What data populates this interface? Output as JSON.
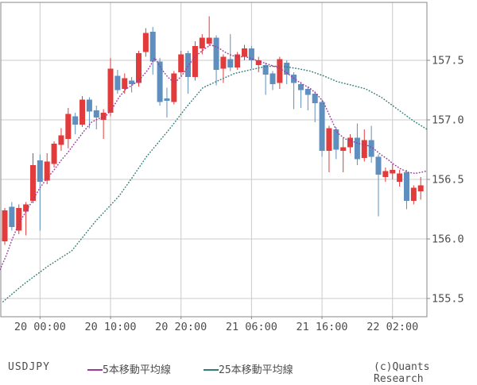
{
  "footer": {
    "symbol": "USDJPY",
    "ma5_label": "5本移動平均線",
    "ma25_label": "25本移動平均線",
    "copyright": "(c)Quants Research"
  },
  "colors": {
    "up": "#e23b3b",
    "down": "#5e8fbf",
    "ma5": "#9d3a9d",
    "ma25": "#2f7d75",
    "grid": "#cbcbcb",
    "axis": "#878787",
    "text": "#4d4d4d"
  },
  "chart_data": {
    "type": "candlestick",
    "symbol": "USDJPY",
    "timeframe": "1 hour",
    "grid": true,
    "legend_position": "bottom",
    "ylim": [
      155.35,
      157.99
    ],
    "y_ticks": [
      157.5,
      157.0,
      156.5,
      156.0,
      155.5
    ],
    "y_tick_labels": [
      "157.5",
      "157.0",
      "156.5",
      "156.0",
      "155.5"
    ],
    "x_ticks": [
      {
        "index": 5,
        "label": "20 00:00"
      },
      {
        "index": 15,
        "label": "20 10:00"
      },
      {
        "index": 25,
        "label": "20 20:00"
      },
      {
        "index": 35,
        "label": "21 06:00"
      },
      {
        "index": 45,
        "label": "21 16:00"
      },
      {
        "index": 55,
        "label": "22 02:00"
      }
    ],
    "candles": [
      {
        "t": "19 19:00",
        "o": 155.98,
        "h": 156.26,
        "l": 155.95,
        "c": 156.24
      },
      {
        "t": "19 20:00",
        "o": 156.27,
        "h": 156.31,
        "l": 156.07,
        "c": 156.1
      },
      {
        "t": "19 21:00",
        "o": 156.07,
        "h": 156.29,
        "l": 156.04,
        "c": 156.26
      },
      {
        "t": "19 22:00",
        "o": 156.23,
        "h": 156.31,
        "l": 156.03,
        "c": 156.29
      },
      {
        "t": "19 23:00",
        "o": 156.32,
        "h": 156.72,
        "l": 156.3,
        "c": 156.62
      },
      {
        "t": "20 00:00",
        "o": 156.66,
        "h": 156.71,
        "l": 156.07,
        "c": 156.48
      },
      {
        "t": "20 01:00",
        "o": 156.49,
        "h": 156.72,
        "l": 156.46,
        "c": 156.65
      },
      {
        "t": "20 02:00",
        "o": 156.63,
        "h": 156.82,
        "l": 156.6,
        "c": 156.8
      },
      {
        "t": "20 03:00",
        "o": 156.79,
        "h": 156.93,
        "l": 156.74,
        "c": 156.87
      },
      {
        "t": "20 04:00",
        "o": 156.84,
        "h": 157.1,
        "l": 156.76,
        "c": 157.05
      },
      {
        "t": "20 05:00",
        "o": 157.03,
        "h": 157.06,
        "l": 156.88,
        "c": 156.96
      },
      {
        "t": "20 06:00",
        "o": 156.96,
        "h": 157.2,
        "l": 156.94,
        "c": 157.17
      },
      {
        "t": "20 07:00",
        "o": 157.17,
        "h": 157.19,
        "l": 156.93,
        "c": 157.07
      },
      {
        "t": "20 08:00",
        "o": 157.08,
        "h": 157.12,
        "l": 156.92,
        "c": 157.02
      },
      {
        "t": "20 09:00",
        "o": 157.0,
        "h": 157.09,
        "l": 156.84,
        "c": 157.06
      },
      {
        "t": "20 10:00",
        "o": 157.06,
        "h": 157.52,
        "l": 157.03,
        "c": 157.43
      },
      {
        "t": "20 11:00",
        "o": 157.37,
        "h": 157.42,
        "l": 157.22,
        "c": 157.25
      },
      {
        "t": "20 12:00",
        "o": 157.26,
        "h": 157.39,
        "l": 157.22,
        "c": 157.35
      },
      {
        "t": "20 13:00",
        "o": 157.33,
        "h": 157.36,
        "l": 157.23,
        "c": 157.3
      },
      {
        "t": "20 14:00",
        "o": 157.31,
        "h": 157.58,
        "l": 157.28,
        "c": 157.56
      },
      {
        "t": "20 15:00",
        "o": 157.57,
        "h": 157.77,
        "l": 157.53,
        "c": 157.73
      },
      {
        "t": "20 16:00",
        "o": 157.74,
        "h": 157.78,
        "l": 157.38,
        "c": 157.49
      },
      {
        "t": "20 17:00",
        "o": 157.49,
        "h": 157.52,
        "l": 157.12,
        "c": 157.15
      },
      {
        "t": "20 18:00",
        "o": 157.18,
        "h": 157.27,
        "l": 157.02,
        "c": 157.16
      },
      {
        "t": "20 19:00",
        "o": 157.15,
        "h": 157.41,
        "l": 157.13,
        "c": 157.39
      },
      {
        "t": "20 20:00",
        "o": 157.4,
        "h": 157.58,
        "l": 157.37,
        "c": 157.55
      },
      {
        "t": "20 21:00",
        "o": 157.56,
        "h": 157.58,
        "l": 157.22,
        "c": 157.36
      },
      {
        "t": "20 22:00",
        "o": 157.36,
        "h": 157.66,
        "l": 157.33,
        "c": 157.62
      },
      {
        "t": "20 23:00",
        "o": 157.6,
        "h": 157.72,
        "l": 157.55,
        "c": 157.69
      },
      {
        "t": "21 00:00",
        "o": 157.64,
        "h": 157.87,
        "l": 157.62,
        "c": 157.69
      },
      {
        "t": "21 01:00",
        "o": 157.69,
        "h": 157.71,
        "l": 157.29,
        "c": 157.42
      },
      {
        "t": "21 02:00",
        "o": 157.43,
        "h": 157.55,
        "l": 157.31,
        "c": 157.53
      },
      {
        "t": "21 03:00",
        "o": 157.51,
        "h": 157.72,
        "l": 157.41,
        "c": 157.44
      },
      {
        "t": "21 04:00",
        "o": 157.44,
        "h": 157.57,
        "l": 157.42,
        "c": 157.55
      },
      {
        "t": "21 05:00",
        "o": 157.53,
        "h": 157.63,
        "l": 157.5,
        "c": 157.6
      },
      {
        "t": "21 06:00",
        "o": 157.6,
        "h": 157.62,
        "l": 157.43,
        "c": 157.5
      },
      {
        "t": "21 07:00",
        "o": 157.46,
        "h": 157.53,
        "l": 157.4,
        "c": 157.5
      },
      {
        "t": "21 08:00",
        "o": 157.46,
        "h": 157.48,
        "l": 157.21,
        "c": 157.38
      },
      {
        "t": "21 09:00",
        "o": 157.39,
        "h": 157.41,
        "l": 157.25,
        "c": 157.3
      },
      {
        "t": "21 10:00",
        "o": 157.31,
        "h": 157.53,
        "l": 157.26,
        "c": 157.51
      },
      {
        "t": "21 11:00",
        "o": 157.48,
        "h": 157.5,
        "l": 157.3,
        "c": 157.38
      },
      {
        "t": "21 12:00",
        "o": 157.38,
        "h": 157.4,
        "l": 157.09,
        "c": 157.31
      },
      {
        "t": "21 13:00",
        "o": 157.3,
        "h": 157.32,
        "l": 157.1,
        "c": 157.25
      },
      {
        "t": "21 14:00",
        "o": 157.26,
        "h": 157.28,
        "l": 157.08,
        "c": 157.21
      },
      {
        "t": "21 15:00",
        "o": 157.22,
        "h": 157.24,
        "l": 156.98,
        "c": 157.14
      },
      {
        "t": "21 16:00",
        "o": 157.15,
        "h": 157.17,
        "l": 156.69,
        "c": 156.74
      },
      {
        "t": "21 17:00",
        "o": 156.74,
        "h": 156.95,
        "l": 156.56,
        "c": 156.93
      },
      {
        "t": "21 18:00",
        "o": 156.92,
        "h": 156.94,
        "l": 156.67,
        "c": 156.75
      },
      {
        "t": "21 19:00",
        "o": 156.74,
        "h": 156.85,
        "l": 156.56,
        "c": 156.77
      },
      {
        "t": "21 20:00",
        "o": 156.77,
        "h": 156.88,
        "l": 156.72,
        "c": 156.85
      },
      {
        "t": "21 21:00",
        "o": 156.85,
        "h": 156.97,
        "l": 156.62,
        "c": 156.67
      },
      {
        "t": "21 22:00",
        "o": 156.68,
        "h": 156.92,
        "l": 156.65,
        "c": 156.83
      },
      {
        "t": "21 23:00",
        "o": 156.83,
        "h": 156.95,
        "l": 156.64,
        "c": 156.69
      },
      {
        "t": "22 00:00",
        "o": 156.69,
        "h": 156.71,
        "l": 156.19,
        "c": 156.54
      },
      {
        "t": "22 01:00",
        "o": 156.52,
        "h": 156.6,
        "l": 156.48,
        "c": 156.57
      },
      {
        "t": "22 02:00",
        "o": 156.55,
        "h": 156.63,
        "l": 156.5,
        "c": 156.58
      },
      {
        "t": "22 03:00",
        "o": 156.48,
        "h": 156.58,
        "l": 156.44,
        "c": 156.55
      },
      {
        "t": "22 04:00",
        "o": 156.56,
        "h": 156.58,
        "l": 156.25,
        "c": 156.32
      },
      {
        "t": "22 05:00",
        "o": 156.32,
        "h": 156.45,
        "l": 156.29,
        "c": 156.43
      },
      {
        "t": "22 06:00",
        "o": 156.4,
        "h": 156.52,
        "l": 156.33,
        "c": 156.45
      }
    ],
    "series": [
      {
        "name": "5本移動平均線",
        "points": [
          [
            -0.7,
            155.74
          ],
          [
            0.2,
            155.86
          ],
          [
            1.0,
            155.99
          ],
          [
            2.0,
            156.13
          ],
          [
            3.0,
            156.23
          ],
          [
            4.0,
            156.33
          ],
          [
            5.0,
            156.43
          ],
          [
            6.0,
            156.51
          ],
          [
            7.0,
            156.58
          ],
          [
            8.0,
            156.66
          ],
          [
            9.0,
            156.73
          ],
          [
            10.0,
            156.81
          ],
          [
            11.3,
            156.91
          ],
          [
            12.3,
            156.98
          ],
          [
            13.3,
            157.01
          ],
          [
            14.3,
            157.03
          ],
          [
            15.2,
            157.09
          ],
          [
            16.2,
            157.19
          ],
          [
            17.2,
            157.26
          ],
          [
            18.3,
            157.3
          ],
          [
            19.3,
            157.35
          ],
          [
            20.3,
            157.42
          ],
          [
            21.3,
            157.52
          ],
          [
            22.2,
            157.43
          ],
          [
            23.1,
            157.36
          ],
          [
            24.1,
            157.31
          ],
          [
            25.1,
            157.37
          ],
          [
            26.2,
            157.47
          ],
          [
            27.2,
            157.54
          ],
          [
            28.2,
            157.59
          ],
          [
            29.2,
            157.63
          ],
          [
            30.2,
            157.61
          ],
          [
            31.2,
            157.57
          ],
          [
            32.2,
            157.54
          ],
          [
            33.2,
            157.53
          ],
          [
            34.2,
            157.53
          ],
          [
            35.2,
            157.51
          ],
          [
            36.2,
            157.49
          ],
          [
            37.2,
            157.47
          ],
          [
            38.2,
            157.45
          ],
          [
            39.1,
            157.43
          ],
          [
            40.1,
            157.39
          ],
          [
            41.2,
            157.34
          ],
          [
            42.2,
            157.3
          ],
          [
            43.2,
            157.27
          ],
          [
            44.2,
            157.22
          ],
          [
            45.2,
            157.15
          ],
          [
            46.2,
            157.02
          ],
          [
            47.2,
            156.89
          ],
          [
            48.3,
            156.84
          ],
          [
            49.3,
            156.82
          ],
          [
            50.3,
            156.8
          ],
          [
            51.3,
            156.79
          ],
          [
            52.3,
            156.76
          ],
          [
            53.3,
            156.71
          ],
          [
            54.3,
            156.67
          ],
          [
            55.1,
            156.63
          ],
          [
            56.1,
            156.59
          ],
          [
            57.2,
            156.56
          ],
          [
            58.2,
            156.55
          ],
          [
            59.1,
            156.56
          ],
          [
            59.8,
            156.57
          ]
        ]
      },
      {
        "name": "25本移動平均線",
        "points": [
          [
            -0.3,
            155.47
          ],
          [
            2.7,
            155.62
          ],
          [
            6.1,
            155.77
          ],
          [
            9.5,
            155.9
          ],
          [
            12.9,
            156.15
          ],
          [
            16.2,
            156.36
          ],
          [
            17.9,
            156.5
          ],
          [
            20.1,
            156.69
          ],
          [
            23.6,
            156.94
          ],
          [
            25.8,
            157.11
          ],
          [
            28.1,
            157.27
          ],
          [
            30.3,
            157.33
          ],
          [
            32.6,
            157.39
          ],
          [
            34.8,
            157.42
          ],
          [
            37.1,
            157.45
          ],
          [
            39.4,
            157.45
          ],
          [
            41.6,
            157.43
          ],
          [
            43.3,
            157.41
          ],
          [
            45.2,
            157.37
          ],
          [
            47.2,
            157.32
          ],
          [
            49.3,
            157.29
          ],
          [
            51.2,
            157.26
          ],
          [
            53.4,
            157.19
          ],
          [
            55.7,
            157.09
          ],
          [
            58.0,
            156.99
          ],
          [
            59.9,
            156.92
          ]
        ]
      }
    ]
  }
}
